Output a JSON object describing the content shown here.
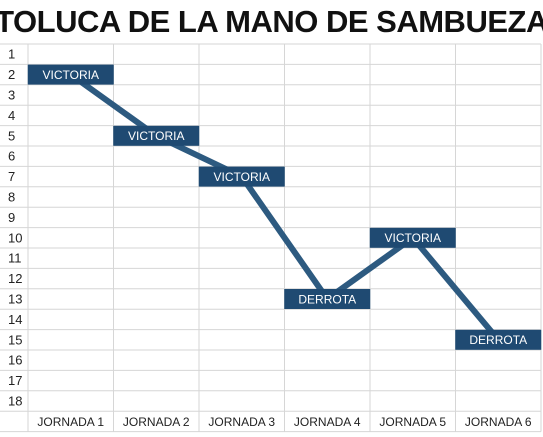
{
  "title": "TOLUCA DE LA MANO DE SAMBUEZA",
  "chart_data": {
    "type": "line",
    "title": "TOLUCA DE LA MANO DE SAMBUEZA",
    "categories": [
      "JORNADA 1",
      "JORNADA 2",
      "JORNADA 3",
      "JORNADA 4",
      "JORNADA 5",
      "JORNADA 6"
    ],
    "y_ticks": [
      1,
      2,
      3,
      4,
      5,
      6,
      7,
      8,
      9,
      10,
      11,
      12,
      13,
      14,
      15,
      16,
      17,
      18
    ],
    "ylim": [
      1,
      18
    ],
    "y_inverted": true,
    "grid": true,
    "series": [
      {
        "values": [
          2,
          5,
          7,
          13,
          10,
          15
        ],
        "labels": [
          "VICTORIA",
          "VICTORIA",
          "VICTORIA",
          "DERROTA",
          "VICTORIA",
          "DERROTA"
        ]
      }
    ],
    "colors": {
      "line": "#2d5a80",
      "label_box": "#1f4a72",
      "label_text": "#ffffff",
      "grid": "#d6d6d6"
    }
  }
}
